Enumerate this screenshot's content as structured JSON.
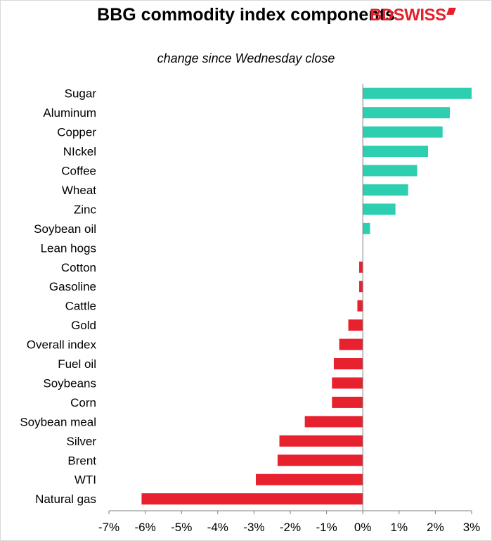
{
  "logo": {
    "text_bd": "BD",
    "text_swiss": "SWISS"
  },
  "chart_data": {
    "type": "bar",
    "orientation": "horizontal",
    "title": "BBG commodity index components",
    "subtitle": "change since Wednesday close",
    "categories": [
      "Sugar",
      "Aluminum",
      "Copper",
      "NIckel",
      "Coffee",
      "Wheat",
      "Zinc",
      "Soybean oil",
      "Lean hogs",
      "Cotton",
      "Gasoline",
      "Cattle",
      "Gold",
      "Overall index",
      "Fuel oil",
      "Soybeans",
      "Corn",
      "Soybean meal",
      "Silver",
      "Brent",
      "WTI",
      "Natural gas"
    ],
    "values": [
      3.0,
      2.4,
      2.2,
      1.8,
      1.5,
      1.25,
      0.9,
      0.2,
      0.0,
      -0.1,
      -0.1,
      -0.15,
      -0.4,
      -0.65,
      -0.8,
      -0.85,
      -0.85,
      -1.6,
      -2.3,
      -2.35,
      -2.95,
      -6.1
    ],
    "xlim": [
      -7,
      3
    ],
    "xticks": [
      -7,
      -6,
      -5,
      -4,
      -3,
      -2,
      -1,
      0,
      1,
      2,
      3
    ],
    "xtick_labels": [
      "-7%",
      "-6%",
      "-5%",
      "-4%",
      "-3%",
      "-2%",
      "-1%",
      "0%",
      "1%",
      "2%",
      "3%"
    ],
    "colors": {
      "positive": "#2ecfb0",
      "negative": "#e8212e",
      "axis": "#7f7f7f"
    },
    "grid": false,
    "legend": "none"
  }
}
